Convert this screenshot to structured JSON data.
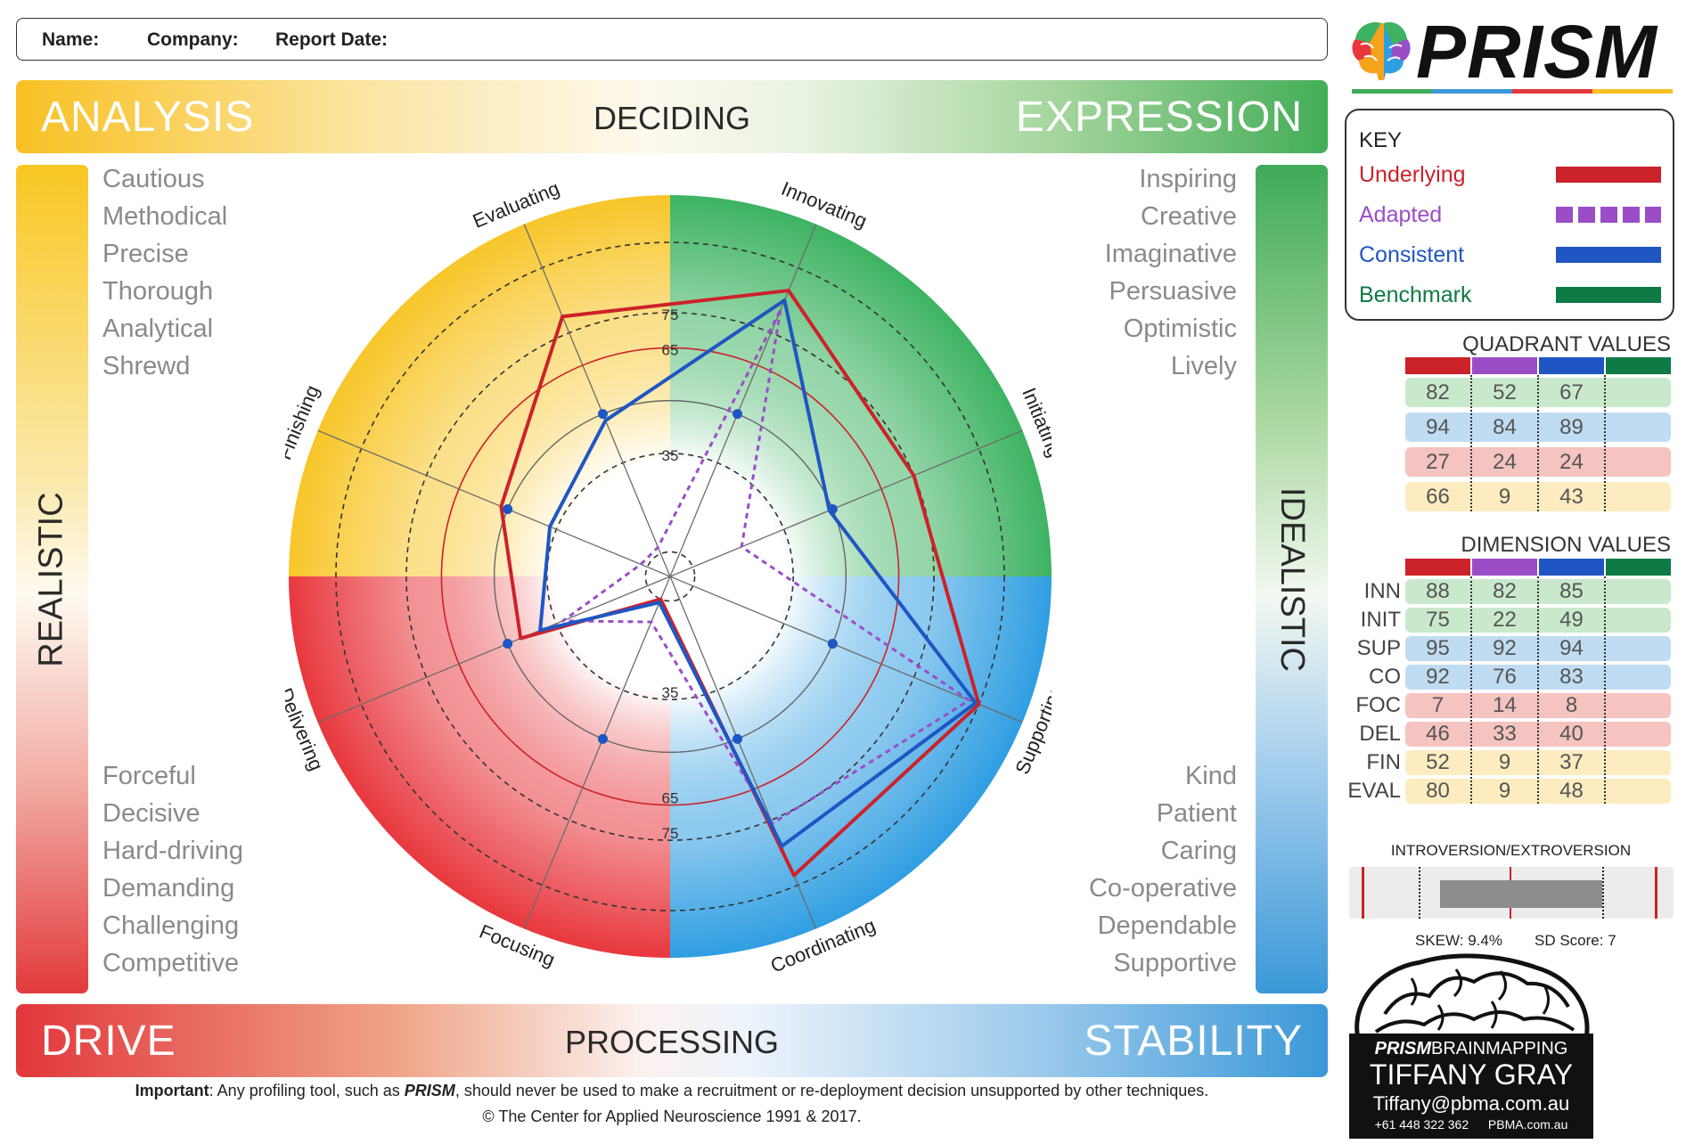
{
  "header": {
    "name_label": "Name:",
    "company_label": "Company:",
    "date_label": "Report Date:"
  },
  "banners": {
    "top_left": "ANALYSIS",
    "top_center": "DECIDING",
    "top_right": "EXPRESSION",
    "bottom_left": "DRIVE",
    "bottom_center": "PROCESSING",
    "bottom_right": "STABILITY",
    "left_vertical": "REALISTIC",
    "right_vertical": "IDEALISTIC"
  },
  "traits": {
    "top_left": [
      "Cautious",
      "Methodical",
      "Precise",
      "Thorough",
      "Analytical",
      "Shrewd"
    ],
    "top_right": [
      "Inspiring",
      "Creative",
      "Imaginative",
      "Persuasive",
      "Optimistic",
      "Lively"
    ],
    "bottom_left": [
      "Forceful",
      "Decisive",
      "Hard-driving",
      "Demanding",
      "Challenging",
      "Competitive"
    ],
    "bottom_right": [
      "Kind",
      "Patient",
      "Caring",
      "Co-operative",
      "Dependable",
      "Supportive"
    ]
  },
  "chart_data": {
    "type": "radar",
    "axes": [
      "Innovating",
      "Initiating",
      "Supporting",
      "Coordinating",
      "Focusing",
      "Delivering",
      "Finishing",
      "Evaluating"
    ],
    "ring_labels": {
      "upper": [
        "75",
        "65",
        "35"
      ],
      "lower": [
        "35",
        "65",
        "75"
      ]
    },
    "quadrants": {
      "top_left": "#f8c62a",
      "top_right": "#3db362",
      "bottom_left": "#e8383e",
      "bottom_right": "#2f9ee2"
    },
    "series": [
      {
        "name": "Underlying",
        "color": "#cc2229",
        "style": "solid",
        "values": [
          88,
          75,
          95,
          92,
          7,
          46,
          52,
          80
        ]
      },
      {
        "name": "Adapted",
        "color": "#9b4dc8",
        "style": "dashed",
        "values": [
          82,
          22,
          92,
          76,
          14,
          33,
          9,
          9
        ]
      },
      {
        "name": "Consistent",
        "color": "#1f56c3",
        "style": "solid",
        "values": [
          85,
          49,
          94,
          83,
          8,
          40,
          37,
          48
        ]
      }
    ]
  },
  "key": {
    "title": "KEY",
    "items": [
      {
        "label": "Underlying",
        "color": "#cc2229"
      },
      {
        "label": "Adapted",
        "color": "#9b4dc8"
      },
      {
        "label": "Consistent",
        "color": "#1f56c3"
      },
      {
        "label": "Benchmark",
        "color": "#0e7a45"
      }
    ]
  },
  "quadrant_values": {
    "title": "QUADRANT VALUES",
    "rows": [
      {
        "values": [
          "82",
          "52",
          "67",
          ""
        ],
        "bg": "#c9e9cd"
      },
      {
        "values": [
          "94",
          "84",
          "89",
          ""
        ],
        "bg": "#bfdcf2"
      },
      {
        "values": [
          "27",
          "24",
          "24",
          ""
        ],
        "bg": "#f5c3c0"
      },
      {
        "values": [
          "66",
          "9",
          "43",
          ""
        ],
        "bg": "#fcecbf"
      }
    ]
  },
  "dimension_values": {
    "title": "DIMENSION VALUES",
    "rows": [
      {
        "label": "INN",
        "values": [
          "88",
          "82",
          "85",
          ""
        ],
        "bg": "#c9e9cd"
      },
      {
        "label": "INIT",
        "values": [
          "75",
          "22",
          "49",
          ""
        ],
        "bg": "#c9e9cd"
      },
      {
        "label": "SUP",
        "values": [
          "95",
          "92",
          "94",
          ""
        ],
        "bg": "#bfdcf2"
      },
      {
        "label": "CO",
        "values": [
          "92",
          "76",
          "83",
          ""
        ],
        "bg": "#bfdcf2"
      },
      {
        "label": "FOC",
        "values": [
          "7",
          "14",
          "8",
          ""
        ],
        "bg": "#f5c3c0"
      },
      {
        "label": "DEL",
        "values": [
          "46",
          "33",
          "40",
          ""
        ],
        "bg": "#f5c3c0"
      },
      {
        "label": "FIN",
        "values": [
          "52",
          "9",
          "37",
          ""
        ],
        "bg": "#fcecbf"
      },
      {
        "label": "EVAL",
        "values": [
          "80",
          "9",
          "48",
          ""
        ],
        "bg": "#fcecbf"
      }
    ]
  },
  "introversion": {
    "title": "INTROVERSION/EXTROVERSION",
    "skew": "SKEW: 9.4%",
    "sd": "SD Score: 7",
    "bar_start": 0.28,
    "bar_end": 0.78
  },
  "logo": {
    "word": "PRISM"
  },
  "card": {
    "brand_bold": "PRISM",
    "brand_light": "BRAINMAPPING",
    "name": "TIFFANY GRAY",
    "email": "Tiffany@pbma.com.au",
    "phone": "+61 448 322 362",
    "site": "PBMA.com.au"
  },
  "footer": {
    "important_label": "Important",
    "important_text": ": Any profiling tool, such as ",
    "important_brand": "PRISM",
    "important_rest": ", should never be used to make a recruitment or re-deployment decision unsupported by other techniques.",
    "copyright": "© The Center for Applied Neuroscience 1991 & 2017."
  }
}
